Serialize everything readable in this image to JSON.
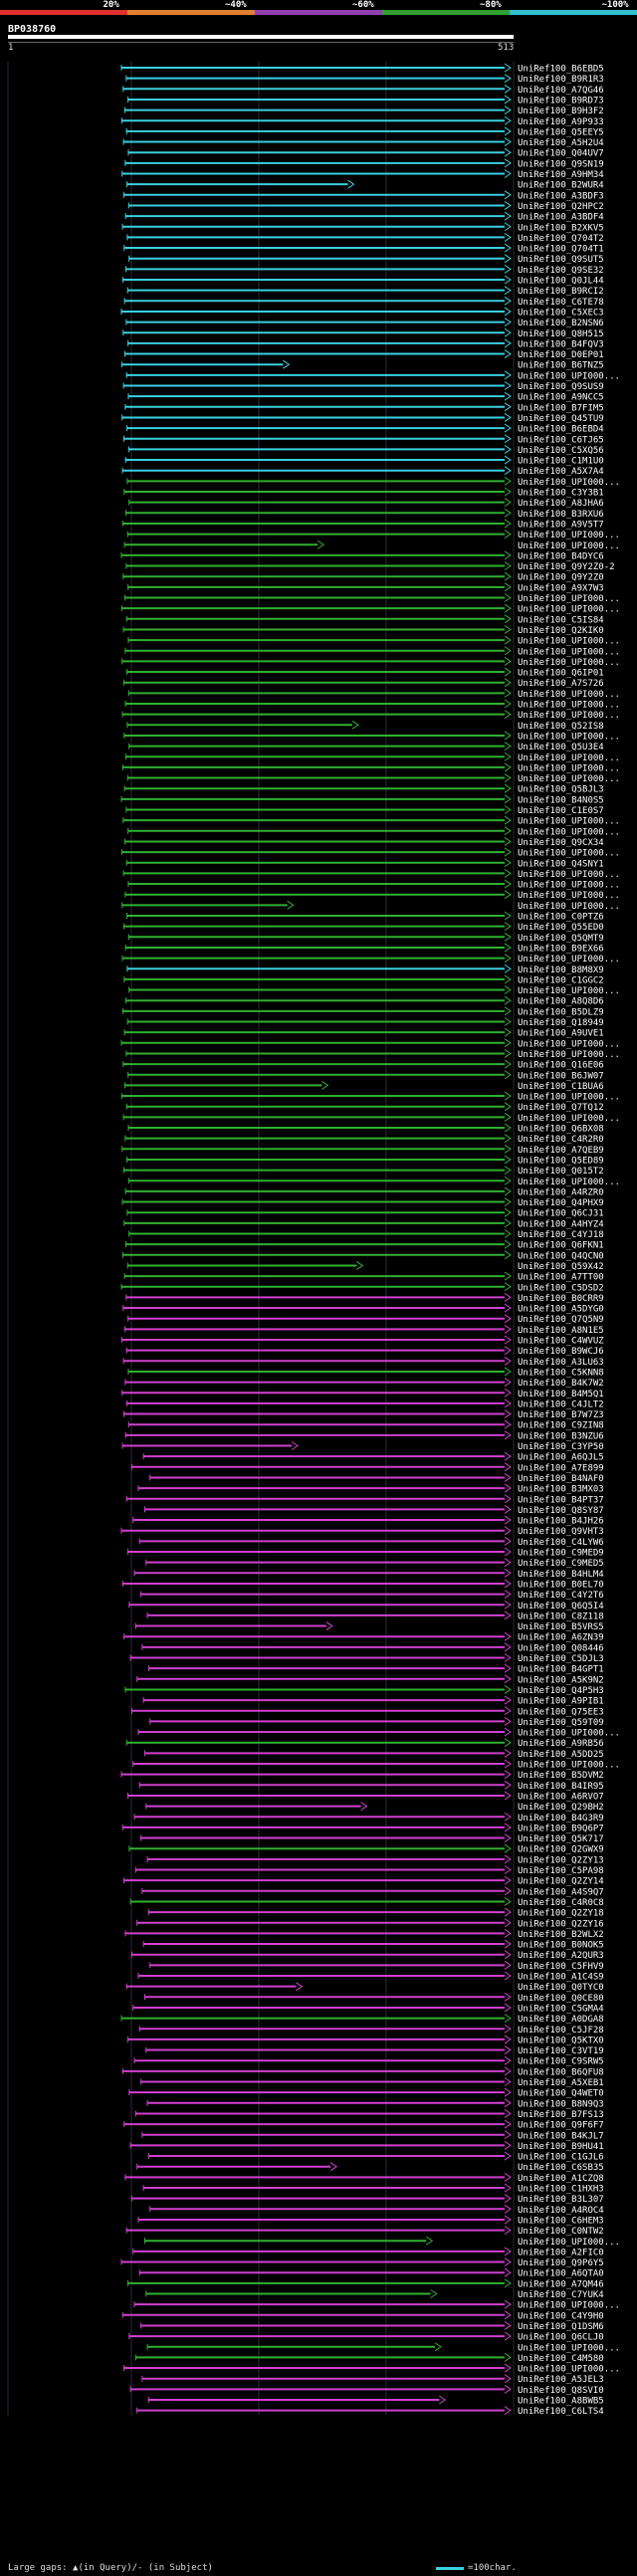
{
  "legend": [
    {
      "label": "20%",
      "color": "#e03030"
    },
    {
      "label": "~40%",
      "color": "#e08030"
    },
    {
      "label": "~60%",
      "color": "#9040b0"
    },
    {
      "label": "~80%",
      "color": "#30a030"
    },
    {
      "label": "~100%",
      "color": "#30c0d0"
    }
  ],
  "query": {
    "title": "BP038760",
    "start": "1",
    "end": "513"
  },
  "footer": {
    "gaps_text": "Large gaps: ▲(in Query)/- (in Subject)",
    "scale_text": "=100char."
  },
  "colors": {
    "cyan": "#3ad0e0",
    "green": "#30b030",
    "magenta": "#d040d0"
  },
  "hits": [
    {
      "label": "UniRef100_B6EBD5",
      "color": "cyan"
    },
    {
      "label": "UniRef100_B9R1R3",
      "color": "cyan"
    },
    {
      "label": "UniRef100_A7QG46",
      "color": "cyan"
    },
    {
      "label": "UniRef100_B9RD73",
      "color": "cyan"
    },
    {
      "label": "UniRef100_B9H3F2",
      "color": "cyan"
    },
    {
      "label": "UniRef100_A9P933",
      "color": "cyan"
    },
    {
      "label": "UniRef100_Q5EEY5",
      "color": "cyan"
    },
    {
      "label": "UniRef100_A5H2U4",
      "color": "cyan"
    },
    {
      "label": "UniRef100_Q04UV7",
      "color": "cyan"
    },
    {
      "label": "UniRef100_Q9SN19",
      "color": "cyan"
    },
    {
      "label": "UniRef100_A9HM34",
      "color": "cyan"
    },
    {
      "label": "UniRef100_B2WUR4",
      "color": "cyan"
    },
    {
      "label": "UniRef100_A3BDF3",
      "color": "cyan"
    },
    {
      "label": "UniRef100_Q2HPC2",
      "color": "cyan"
    },
    {
      "label": "UniRef100_A3BDF4",
      "color": "cyan"
    },
    {
      "label": "UniRef100_B2XKV5",
      "color": "cyan"
    },
    {
      "label": "UniRef100_Q704T2",
      "color": "cyan"
    },
    {
      "label": "UniRef100_Q704T1",
      "color": "cyan"
    },
    {
      "label": "UniRef100_Q9SUT5",
      "color": "cyan"
    },
    {
      "label": "UniRef100_Q9SE32",
      "color": "cyan"
    },
    {
      "label": "UniRef100_Q0JL44",
      "color": "cyan"
    },
    {
      "label": "UniRef100_B9RCI2",
      "color": "cyan"
    },
    {
      "label": "UniRef100_C6TE78",
      "color": "cyan"
    },
    {
      "label": "UniRef100_C5XEC3",
      "color": "cyan"
    },
    {
      "label": "UniRef100_B2NSN6",
      "color": "cyan"
    },
    {
      "label": "UniRef100_Q8H515",
      "color": "cyan"
    },
    {
      "label": "UniRef100_B4FQV3",
      "color": "cyan"
    },
    {
      "label": "UniRef100_D0EP01",
      "color": "cyan"
    },
    {
      "label": "UniRef100_B6TNZ5",
      "color": "cyan"
    },
    {
      "label": "UniRef100_UPI000...",
      "color": "cyan"
    },
    {
      "label": "UniRef100_Q9SUS9",
      "color": "cyan"
    },
    {
      "label": "UniRef100_A9NCC5",
      "color": "cyan"
    },
    {
      "label": "UniRef100_B7FIM5",
      "color": "cyan"
    },
    {
      "label": "UniRef100_Q45TU9",
      "color": "cyan"
    },
    {
      "label": "UniRef100_B6EBD4",
      "color": "cyan"
    },
    {
      "label": "UniRef100_C6TJ65",
      "color": "cyan"
    },
    {
      "label": "UniRef100_C5XQ56",
      "color": "cyan"
    },
    {
      "label": "UniRef100_C1M1U0",
      "color": "cyan"
    },
    {
      "label": "UniRef100_A5X7A4",
      "color": "cyan"
    },
    {
      "label": "UniRef100_UPI000...",
      "color": "green"
    },
    {
      "label": "UniRef100_C3Y3B1",
      "color": "green"
    },
    {
      "label": "UniRef100_A8JHA6",
      "color": "green"
    },
    {
      "label": "UniRef100_B3RXU6",
      "color": "green"
    },
    {
      "label": "UniRef100_A9V5T7",
      "color": "green"
    },
    {
      "label": "UniRef100_UPI000...",
      "color": "green"
    },
    {
      "label": "UniRef100_UPI000...",
      "color": "green"
    },
    {
      "label": "UniRef100_B4DYC6",
      "color": "green"
    },
    {
      "label": "UniRef100_Q9Y2Z0-2",
      "color": "green"
    },
    {
      "label": "UniRef100_Q9Y2Z0",
      "color": "green"
    },
    {
      "label": "UniRef100_A9X7W3",
      "color": "green"
    },
    {
      "label": "UniRef100_UPI000...",
      "color": "green"
    },
    {
      "label": "UniRef100_UPI000...",
      "color": "green"
    },
    {
      "label": "UniRef100_C5IS84",
      "color": "green"
    },
    {
      "label": "UniRef100_Q2KIK0",
      "color": "green"
    },
    {
      "label": "UniRef100_UPI000...",
      "color": "green"
    },
    {
      "label": "UniRef100_UPI000...",
      "color": "green"
    },
    {
      "label": "UniRef100_UPI000...",
      "color": "green"
    },
    {
      "label": "UniRef100_Q6IP01",
      "color": "green"
    },
    {
      "label": "UniRef100_A7S726",
      "color": "green"
    },
    {
      "label": "UniRef100_UPI000...",
      "color": "green"
    },
    {
      "label": "UniRef100_UPI000...",
      "color": "green"
    },
    {
      "label": "UniRef100_UPI000...",
      "color": "green"
    },
    {
      "label": "UniRef100_Q52IS8",
      "color": "green"
    },
    {
      "label": "UniRef100_UPI000...",
      "color": "green"
    },
    {
      "label": "UniRef100_Q5U3E4",
      "color": "green"
    },
    {
      "label": "UniRef100_UPI000...",
      "color": "green"
    },
    {
      "label": "UniRef100_UPI000...",
      "color": "green"
    },
    {
      "label": "UniRef100_UPI000...",
      "color": "green"
    },
    {
      "label": "UniRef100_Q5BJL3",
      "color": "green"
    },
    {
      "label": "UniRef100_B4N0S5",
      "color": "green"
    },
    {
      "label": "UniRef100_C1E0S7",
      "color": "green"
    },
    {
      "label": "UniRef100_UPI000...",
      "color": "green"
    },
    {
      "label": "UniRef100_UPI000...",
      "color": "green"
    },
    {
      "label": "UniRef100_Q9CX34",
      "color": "green"
    },
    {
      "label": "UniRef100_UPI000...",
      "color": "green"
    },
    {
      "label": "UniRef100_Q4SNY1",
      "color": "green"
    },
    {
      "label": "UniRef100_UPI000...",
      "color": "green"
    },
    {
      "label": "UniRef100_UPI000...",
      "color": "green"
    },
    {
      "label": "UniRef100_UPI000...",
      "color": "green"
    },
    {
      "label": "UniRef100_UPI000...",
      "color": "green"
    },
    {
      "label": "UniRef100_C0PTZ6",
      "color": "green"
    },
    {
      "label": "UniRef100_Q55ED0",
      "color": "green"
    },
    {
      "label": "UniRef100_Q5QMT9",
      "color": "green"
    },
    {
      "label": "UniRef100_B9EX66",
      "color": "green"
    },
    {
      "label": "UniRef100_UPI000...",
      "color": "green"
    },
    {
      "label": "UniRef100_B8M8X9",
      "color": "cyan"
    },
    {
      "label": "UniRef100_C1GGC2",
      "color": "green"
    },
    {
      "label": "UniRef100_UPI000...",
      "color": "green"
    },
    {
      "label": "UniRef100_A8Q8D6",
      "color": "green"
    },
    {
      "label": "UniRef100_B5DLZ9",
      "color": "green"
    },
    {
      "label": "UniRef100_Q18949",
      "color": "green"
    },
    {
      "label": "UniRef100_A9UVE1",
      "color": "green"
    },
    {
      "label": "UniRef100_UPI000...",
      "color": "green"
    },
    {
      "label": "UniRef100_UPI000...",
      "color": "green"
    },
    {
      "label": "UniRef100_Q16E06",
      "color": "green"
    },
    {
      "label": "UniRef100_B6JW07",
      "color": "green"
    },
    {
      "label": "UniRef100_C1BUA6",
      "color": "green"
    },
    {
      "label": "UniRef100_UPI000...",
      "color": "green"
    },
    {
      "label": "UniRef100_Q7TQ12",
      "color": "green"
    },
    {
      "label": "UniRef100_UPI000...",
      "color": "green"
    },
    {
      "label": "UniRef100_Q6BX08",
      "color": "green"
    },
    {
      "label": "UniRef100_C4R2R0",
      "color": "green"
    },
    {
      "label": "UniRef100_A7QEB9",
      "color": "green"
    },
    {
      "label": "UniRef100_Q5ED89",
      "color": "green"
    },
    {
      "label": "UniRef100_Q015T2",
      "color": "green"
    },
    {
      "label": "UniRef100_UPI000...",
      "color": "green"
    },
    {
      "label": "UniRef100_A4RZR0",
      "color": "green"
    },
    {
      "label": "UniRef100_Q4PHX9",
      "color": "green"
    },
    {
      "label": "UniRef100_Q6CJ31",
      "color": "green"
    },
    {
      "label": "UniRef100_A4HYZ4",
      "color": "green"
    },
    {
      "label": "UniRef100_C4YJ18",
      "color": "green"
    },
    {
      "label": "UniRef100_Q6FKN1",
      "color": "green"
    },
    {
      "label": "UniRef100_Q4QCN0",
      "color": "green"
    },
    {
      "label": "UniRef100_Q59X42",
      "color": "green"
    },
    {
      "label": "UniRef100_A7TT00",
      "color": "green"
    },
    {
      "label": "UniRef100_C5DSD2",
      "color": "green"
    },
    {
      "label": "UniRef100_B0CRR9",
      "color": "magenta"
    },
    {
      "label": "UniRef100_A5DYG0",
      "color": "magenta"
    },
    {
      "label": "UniRef100_Q7Q5N9",
      "color": "magenta"
    },
    {
      "label": "UniRef100_A8N1E5",
      "color": "magenta"
    },
    {
      "label": "UniRef100_C4WVUZ",
      "color": "magenta"
    },
    {
      "label": "UniRef100_B9WCJ6",
      "color": "magenta"
    },
    {
      "label": "UniRef100_A3LU63",
      "color": "magenta"
    },
    {
      "label": "UniRef100_C5KNN8",
      "color": "green"
    },
    {
      "label": "UniRef100_B4K7W2",
      "color": "magenta"
    },
    {
      "label": "UniRef100_B4M5Q1",
      "color": "magenta"
    },
    {
      "label": "UniRef100_C4JLT2",
      "color": "magenta"
    },
    {
      "label": "UniRef100_B7W7Z3",
      "color": "magenta"
    },
    {
      "label": "UniRef100_C9ZIN8",
      "color": "magenta"
    },
    {
      "label": "UniRef100_B3NZU6",
      "color": "magenta"
    },
    {
      "label": "UniRef100_C3YP50",
      "color": "magenta"
    },
    {
      "label": "UniRef100_A6QJL5",
      "color": "magenta"
    },
    {
      "label": "UniRef100_A7E899",
      "color": "magenta"
    },
    {
      "label": "UniRef100_B4NAF0",
      "color": "magenta"
    },
    {
      "label": "UniRef100_B3MX03",
      "color": "magenta"
    },
    {
      "label": "UniRef100_B4PT37",
      "color": "magenta"
    },
    {
      "label": "UniRef100_Q8SY87",
      "color": "magenta"
    },
    {
      "label": "UniRef100_B4JH26",
      "color": "magenta"
    },
    {
      "label": "UniRef100_Q9VHT3",
      "color": "magenta"
    },
    {
      "label": "UniRef100_C4LYW6",
      "color": "magenta"
    },
    {
      "label": "UniRef100_C9MED9",
      "color": "magenta"
    },
    {
      "label": "UniRef100_C9MED5",
      "color": "magenta"
    },
    {
      "label": "UniRef100_B4HLM4",
      "color": "magenta"
    },
    {
      "label": "UniRef100_B0EL70",
      "color": "magenta"
    },
    {
      "label": "UniRef100_C4Y2T6",
      "color": "magenta"
    },
    {
      "label": "UniRef100_Q6Q5I4",
      "color": "magenta"
    },
    {
      "label": "UniRef100_C8Z118",
      "color": "magenta"
    },
    {
      "label": "UniRef100_B5VRS5",
      "color": "magenta"
    },
    {
      "label": "UniRef100_A6ZN39",
      "color": "magenta"
    },
    {
      "label": "UniRef100_Q08446",
      "color": "magenta"
    },
    {
      "label": "UniRef100_C5DJL3",
      "color": "magenta"
    },
    {
      "label": "UniRef100_B4GPT1",
      "color": "magenta"
    },
    {
      "label": "UniRef100_A5K9N2",
      "color": "magenta"
    },
    {
      "label": "UniRef100_Q4P5H3",
      "color": "green"
    },
    {
      "label": "UniRef100_A9PIB1",
      "color": "magenta"
    },
    {
      "label": "UniRef100_Q75EE3",
      "color": "magenta"
    },
    {
      "label": "UniRef100_Q59T09",
      "color": "magenta"
    },
    {
      "label": "UniRef100_UPI000...",
      "color": "magenta"
    },
    {
      "label": "UniRef100_A9RB56",
      "color": "green"
    },
    {
      "label": "UniRef100_A5DD25",
      "color": "magenta"
    },
    {
      "label": "UniRef100_UPI000...",
      "color": "magenta"
    },
    {
      "label": "UniRef100_B5DVM2",
      "color": "magenta"
    },
    {
      "label": "UniRef100_B4IR95",
      "color": "magenta"
    },
    {
      "label": "UniRef100_A6RVO7",
      "color": "magenta"
    },
    {
      "label": "UniRef100_Q29BH2",
      "color": "magenta"
    },
    {
      "label": "UniRef100_B4G3R9",
      "color": "magenta"
    },
    {
      "label": "UniRef100_B9Q6P7",
      "color": "magenta"
    },
    {
      "label": "UniRef100_Q5K717",
      "color": "magenta"
    },
    {
      "label": "UniRef100_Q2GWX9",
      "color": "green"
    },
    {
      "label": "UniRef100_Q2ZY13",
      "color": "magenta"
    },
    {
      "label": "UniRef100_C5PA98",
      "color": "magenta"
    },
    {
      "label": "UniRef100_Q2ZY14",
      "color": "magenta"
    },
    {
      "label": "UniRef100_A4S9Q7",
      "color": "magenta"
    },
    {
      "label": "UniRef100_C4R0C8",
      "color": "green"
    },
    {
      "label": "UniRef100_Q2ZY18",
      "color": "magenta"
    },
    {
      "label": "UniRef100_Q2ZY16",
      "color": "magenta"
    },
    {
      "label": "UniRef100_B2WLX2",
      "color": "magenta"
    },
    {
      "label": "UniRef100_B0NOK5",
      "color": "magenta"
    },
    {
      "label": "UniRef100_A2QUR3",
      "color": "magenta"
    },
    {
      "label": "UniRef100_C5FHV9",
      "color": "magenta"
    },
    {
      "label": "UniRef100_A1C4S9",
      "color": "magenta"
    },
    {
      "label": "UniRef100_Q0TYC0",
      "color": "magenta"
    },
    {
      "label": "UniRef100_Q0CE80",
      "color": "magenta"
    },
    {
      "label": "UniRef100_C5GMA4",
      "color": "magenta"
    },
    {
      "label": "UniRef100_A0DGA8",
      "color": "green"
    },
    {
      "label": "UniRef100_C5JF28",
      "color": "magenta"
    },
    {
      "label": "UniRef100_Q5KTX0",
      "color": "magenta"
    },
    {
      "label": "UniRef100_C3VT19",
      "color": "magenta"
    },
    {
      "label": "UniRef100_C9SRW5",
      "color": "magenta"
    },
    {
      "label": "UniRef100_B6QFU8",
      "color": "magenta"
    },
    {
      "label": "UniRef100_A5XEB1",
      "color": "magenta"
    },
    {
      "label": "UniRef100_Q4WET0",
      "color": "magenta"
    },
    {
      "label": "UniRef100_B8N9Q3",
      "color": "magenta"
    },
    {
      "label": "UniRef100_B7FS13",
      "color": "magenta"
    },
    {
      "label": "UniRef100_Q9F6F7",
      "color": "magenta"
    },
    {
      "label": "UniRef100_B4KJL7",
      "color": "magenta"
    },
    {
      "label": "UniRef100_B9HU41",
      "color": "magenta"
    },
    {
      "label": "UniRef100_C1GJL6",
      "color": "magenta"
    },
    {
      "label": "UniRef100_C6SB35",
      "color": "magenta"
    },
    {
      "label": "UniRef100_A1CZQ8",
      "color": "magenta"
    },
    {
      "label": "UniRef100_C1HXH3",
      "color": "magenta"
    },
    {
      "label": "UniRef100_B3L307",
      "color": "magenta"
    },
    {
      "label": "UniRef100_A4ROC4",
      "color": "magenta"
    },
    {
      "label": "UniRef100_C6HEM3",
      "color": "magenta"
    },
    {
      "label": "UniRef100_C0NTW2",
      "color": "magenta"
    },
    {
      "label": "UniRef100_UPI000...",
      "color": "green"
    },
    {
      "label": "UniRef100_A2FIC0",
      "color": "magenta"
    },
    {
      "label": "UniRef100_Q9P6Y5",
      "color": "magenta"
    },
    {
      "label": "UniRef100_A6QTA0",
      "color": "magenta"
    },
    {
      "label": "UniRef100_A7QM46",
      "color": "green"
    },
    {
      "label": "UniRef100_C7YUK4",
      "color": "green"
    },
    {
      "label": "UniRef100_UPI000...",
      "color": "magenta"
    },
    {
      "label": "UniRef100_C4Y9H0",
      "color": "magenta"
    },
    {
      "label": "UniRef100_Q1DSM6",
      "color": "magenta"
    },
    {
      "label": "UniRef100_Q6CLJ0",
      "color": "magenta"
    },
    {
      "label": "UniRef100_UPI000...",
      "color": "green"
    },
    {
      "label": "UniRef100_C4M580",
      "color": "green"
    },
    {
      "label": "UniRef100_UPI000...",
      "color": "magenta"
    },
    {
      "label": "UniRef100_A5JEL3",
      "color": "magenta"
    },
    {
      "label": "UniRef100_Q8SVI0",
      "color": "magenta"
    },
    {
      "label": "UniRef100_A8BWB5",
      "color": "magenta"
    },
    {
      "label": "UniRef100_C6LTS4",
      "color": "magenta"
    }
  ]
}
